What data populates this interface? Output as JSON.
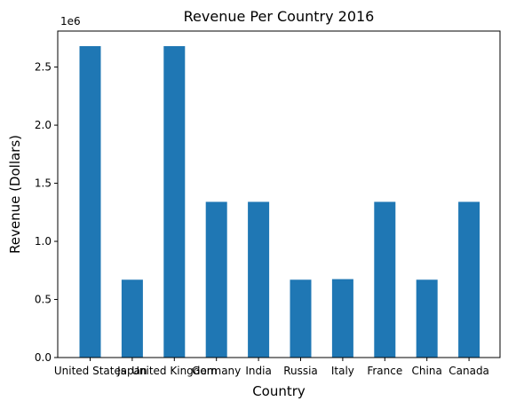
{
  "chart_data": {
    "type": "bar",
    "title": "Revenue Per Country 2016",
    "xlabel": "Country",
    "ylabel": "Revenue (Dollars)",
    "y_multiplier_label": "1e6",
    "categories": [
      "United States",
      "Japan",
      "United Kingdom",
      "Germany",
      "India",
      "Russia",
      "Italy",
      "France",
      "China",
      "Canada"
    ],
    "values": [
      2680000,
      670000,
      2680000,
      1340000,
      1340000,
      670000,
      675000,
      1340000,
      670000,
      1340000
    ],
    "ylim": [
      0,
      2810000
    ],
    "yticks": [
      0,
      500000,
      1000000,
      1500000,
      2000000,
      2500000
    ],
    "ytick_labels": [
      "0.0",
      "0.5",
      "1.0",
      "1.5",
      "2.0",
      "2.5"
    ],
    "bar_color": "#1f77b4",
    "grid": false,
    "legend": "none"
  }
}
